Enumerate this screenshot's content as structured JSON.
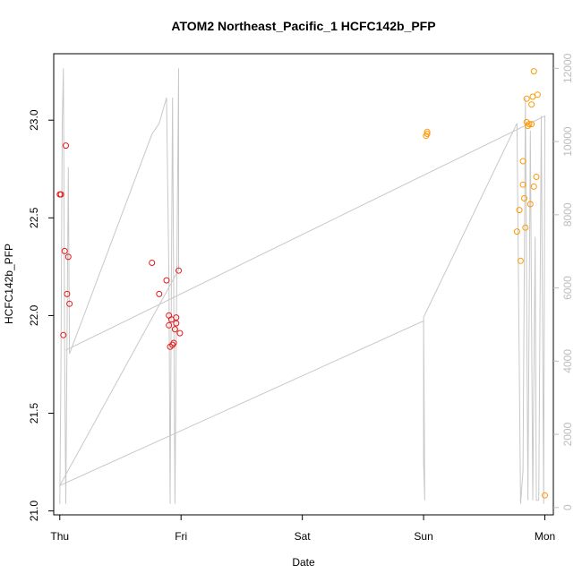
{
  "chart_data": {
    "type": "scatter",
    "title": "ATOM2 Northeast_Pacific_1 HCFC142b_PFP",
    "xlabel": "Date",
    "ylabel": "HCFC142b_PFP",
    "x_ticks": [
      "Thu",
      "Fri",
      "Sat",
      "Sun",
      "Mon"
    ],
    "xlim": [
      -0.05,
      4.07
    ],
    "ylim": [
      20.98,
      23.34
    ],
    "y_ticks": [
      21.0,
      21.5,
      22.0,
      22.5,
      23.0
    ],
    "y_tick_labels": [
      "21.0",
      "21.5",
      "22.0",
      "22.5",
      "23.0"
    ],
    "y2lim": [
      -200,
      12400
    ],
    "y2_ticks": [
      0,
      2000,
      4000,
      6000,
      8000,
      10000,
      12000
    ],
    "y2_tick_labels": [
      "0",
      "2000",
      "4000",
      "6000",
      "8000",
      "10000",
      "12000"
    ],
    "grid": false,
    "colors": {
      "red": "#e41a1c",
      "orange": "#ff9900",
      "altitude": "#c8c8c8"
    },
    "series": [
      {
        "color": "#e41a1c",
        "points": [
          [
            0.0,
            22.62
          ],
          [
            0.01,
            22.62
          ],
          [
            0.03,
            21.9
          ],
          [
            0.04,
            22.33
          ],
          [
            0.05,
            22.87
          ],
          [
            0.06,
            22.11
          ],
          [
            0.07,
            22.3
          ],
          [
            0.08,
            22.06
          ],
          [
            0.76,
            22.27
          ],
          [
            0.82,
            22.11
          ],
          [
            0.88,
            22.18
          ],
          [
            0.9,
            22.0
          ],
          [
            0.9,
            21.95
          ],
          [
            0.91,
            21.84
          ],
          [
            0.92,
            21.98
          ],
          [
            0.93,
            21.85
          ],
          [
            0.94,
            21.86
          ],
          [
            0.95,
            21.93
          ],
          [
            0.96,
            21.96
          ],
          [
            0.96,
            21.99
          ],
          [
            0.98,
            22.23
          ],
          [
            0.99,
            21.91
          ]
        ]
      },
      {
        "color": "#ff9900",
        "points": [
          [
            3.02,
            22.92
          ],
          [
            3.03,
            22.94
          ],
          [
            3.03,
            22.93
          ],
          [
            3.77,
            22.43
          ],
          [
            3.79,
            22.54
          ],
          [
            3.8,
            22.28
          ],
          [
            3.82,
            22.79
          ],
          [
            3.82,
            22.67
          ],
          [
            3.83,
            22.6
          ],
          [
            3.84,
            22.45
          ],
          [
            3.85,
            22.99
          ],
          [
            3.85,
            23.11
          ],
          [
            3.86,
            22.97
          ],
          [
            3.87,
            22.98
          ],
          [
            3.88,
            22.57
          ],
          [
            3.89,
            23.08
          ],
          [
            3.89,
            22.98
          ],
          [
            3.9,
            23.12
          ],
          [
            3.91,
            22.66
          ],
          [
            3.91,
            23.25
          ],
          [
            3.93,
            22.71
          ],
          [
            3.94,
            23.13
          ],
          [
            4.0,
            21.08
          ]
        ]
      }
    ],
    "altitude_line": [
      [
        0.0,
        100
      ],
      [
        0.01,
        4000
      ],
      [
        0.02,
        10500
      ],
      [
        0.03,
        12000
      ],
      [
        0.04,
        4200
      ],
      [
        0.05,
        100
      ],
      [
        0.07,
        9300
      ],
      [
        0.08,
        4200
      ],
      [
        0.76,
        10200
      ],
      [
        0.82,
        10500
      ],
      [
        0.88,
        11200
      ],
      [
        0.9,
        6200
      ],
      [
        0.91,
        100
      ],
      [
        0.92,
        6100
      ],
      [
        0.93,
        11200
      ],
      [
        0.95,
        100
      ],
      [
        0.96,
        4500
      ],
      [
        0.98,
        12000
      ],
      [
        0.98,
        6500
      ],
      [
        0.0,
        600
      ],
      [
        3.0,
        5100
      ],
      [
        3.0,
        1200
      ],
      [
        3.01,
        200
      ],
      [
        3.0,
        5200
      ],
      [
        3.77,
        10500
      ],
      [
        3.8,
        100
      ],
      [
        3.82,
        1000
      ],
      [
        3.84,
        11200
      ],
      [
        3.86,
        200
      ],
      [
        3.88,
        10300
      ],
      [
        3.9,
        200
      ],
      [
        3.92,
        7400
      ],
      [
        3.93,
        200
      ],
      [
        3.95,
        200
      ],
      [
        3.97,
        10700
      ],
      [
        3.99,
        100
      ],
      [
        4.0,
        10700
      ],
      [
        0.05,
        4300
      ]
    ]
  }
}
